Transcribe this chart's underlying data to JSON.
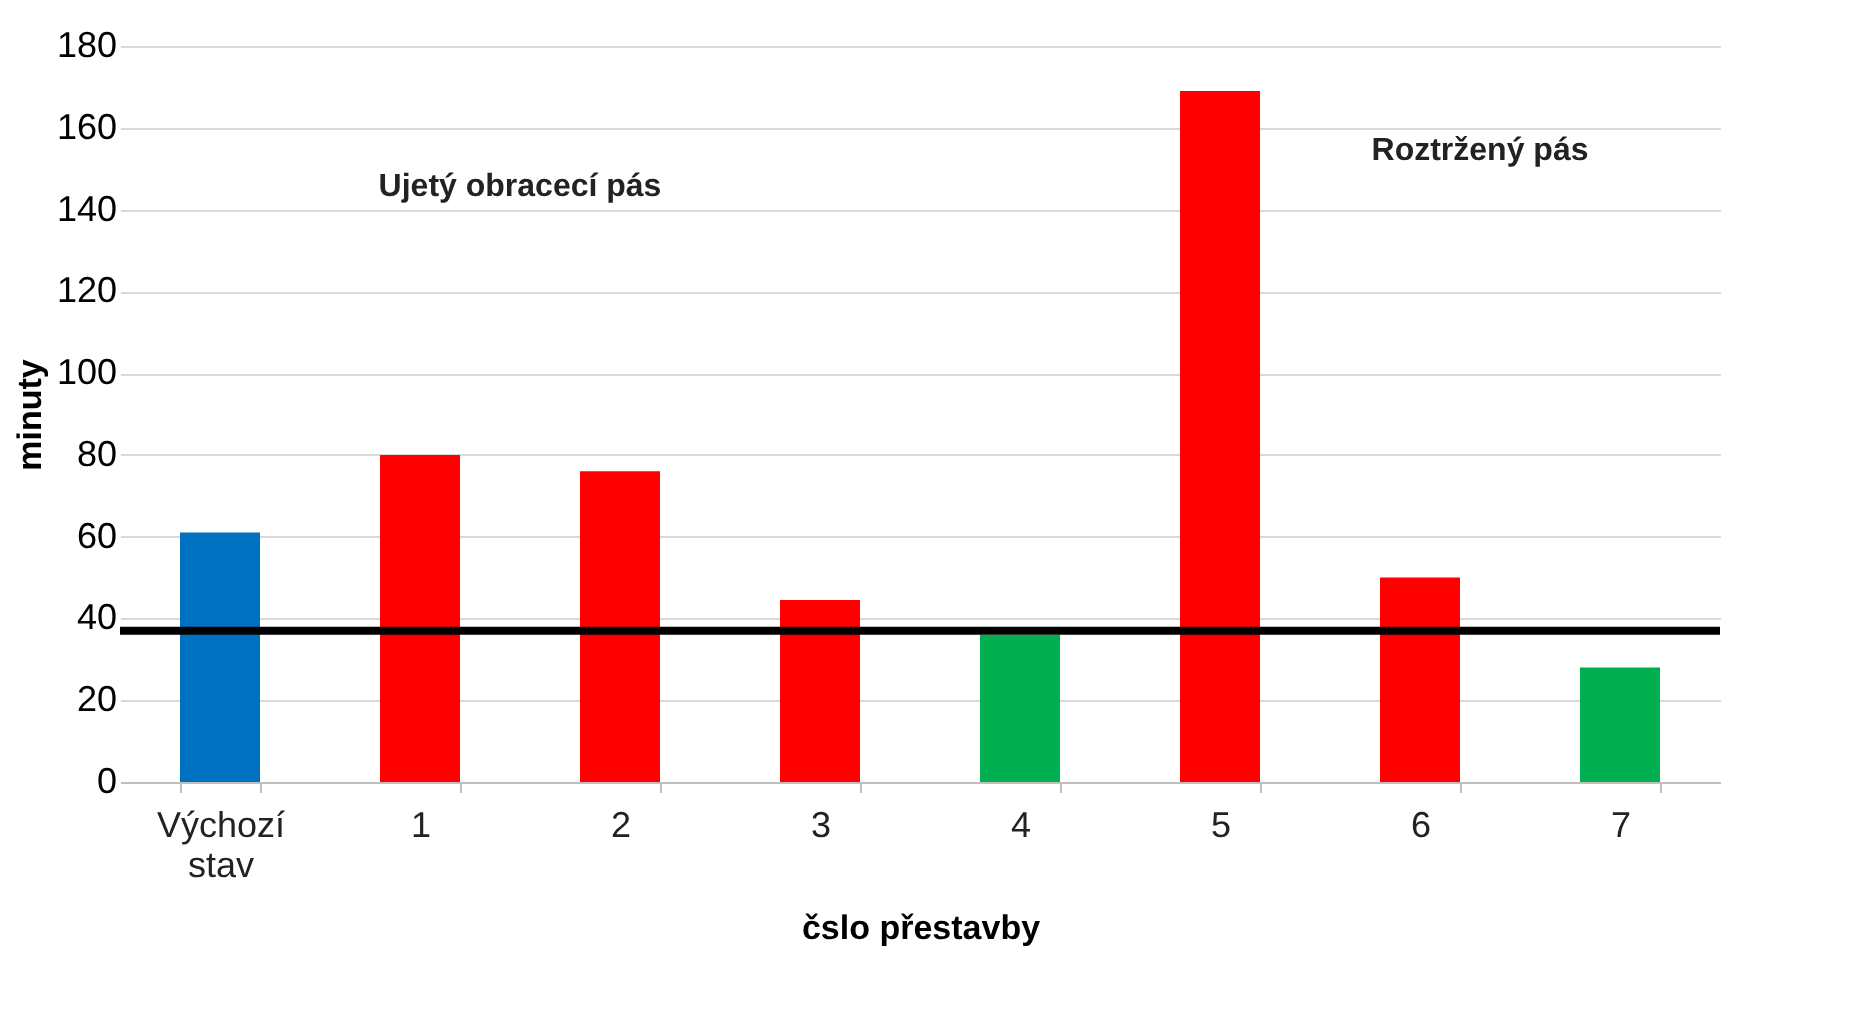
{
  "chart_data": {
    "type": "bar",
    "categories": [
      "Výchozí stav",
      "1",
      "2",
      "3",
      "4",
      "5",
      "6",
      "7"
    ],
    "values": [
      61,
      80,
      76,
      44.5,
      36,
      169,
      50,
      28
    ],
    "colors": [
      "#0070c0",
      "#ff0000",
      "#ff0000",
      "#ff0000",
      "#00b050",
      "#ff0000",
      "#ff0000",
      "#00b050"
    ],
    "xlabel": "čslo přestavby",
    "ylabel": "minuty",
    "ylim": [
      0,
      180
    ],
    "yticks": [
      0,
      20,
      40,
      60,
      80,
      100,
      120,
      140,
      160,
      180
    ],
    "grid": "y",
    "ref_lines": [
      {
        "axis": "y",
        "value": 37,
        "color": "#000000"
      }
    ],
    "annotations": [
      "Ujetý obracecí pás",
      "Roztržený pás"
    ]
  }
}
